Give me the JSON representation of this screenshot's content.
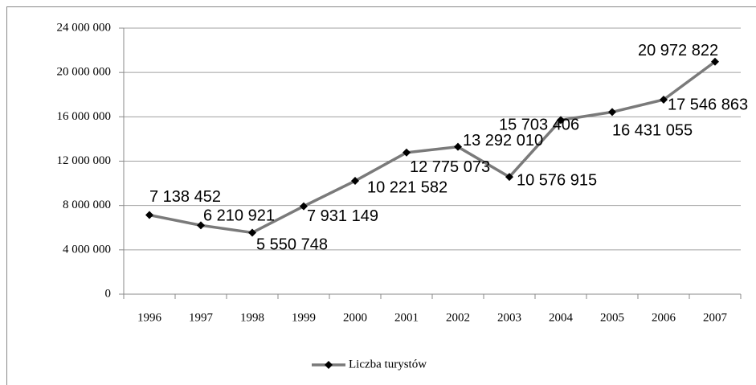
{
  "chart_data": {
    "type": "line",
    "categories": [
      "1996",
      "1997",
      "1998",
      "1999",
      "2000",
      "2001",
      "2002",
      "2003",
      "2004",
      "2005",
      "2006",
      "2007"
    ],
    "series": [
      {
        "name": "Liczba turystów",
        "color": "#7a7a7a",
        "values": [
          7138452,
          6210921,
          5550748,
          7931149,
          10221582,
          12775073,
          13292010,
          10576915,
          15703406,
          16431055,
          17546863,
          20972822
        ],
        "value_labels": [
          "7 138 452",
          "6 210 921",
          "5 550 748",
          "7 931 149",
          "10 221 582",
          "12 775 073",
          "13 292 010",
          "10 576 915",
          "15 703 406",
          "16 431 055",
          "17 546 863",
          "20 972 822"
        ]
      }
    ],
    "ylim": [
      0,
      24000000
    ],
    "yticks": [
      0,
      {
        "value": 4000000,
        "label": "4 000 000"
      },
      {
        "value": 8000000,
        "label": "8 000 000"
      },
      {
        "value": 12000000,
        "label": "12 000 000"
      },
      {
        "value": 16000000,
        "label": "16 000 000"
      },
      {
        "value": 20000000,
        "label": "20 000 000"
      },
      {
        "value": 24000000,
        "label": "24 000 000"
      }
    ],
    "grid": true,
    "legend": "bottom"
  }
}
